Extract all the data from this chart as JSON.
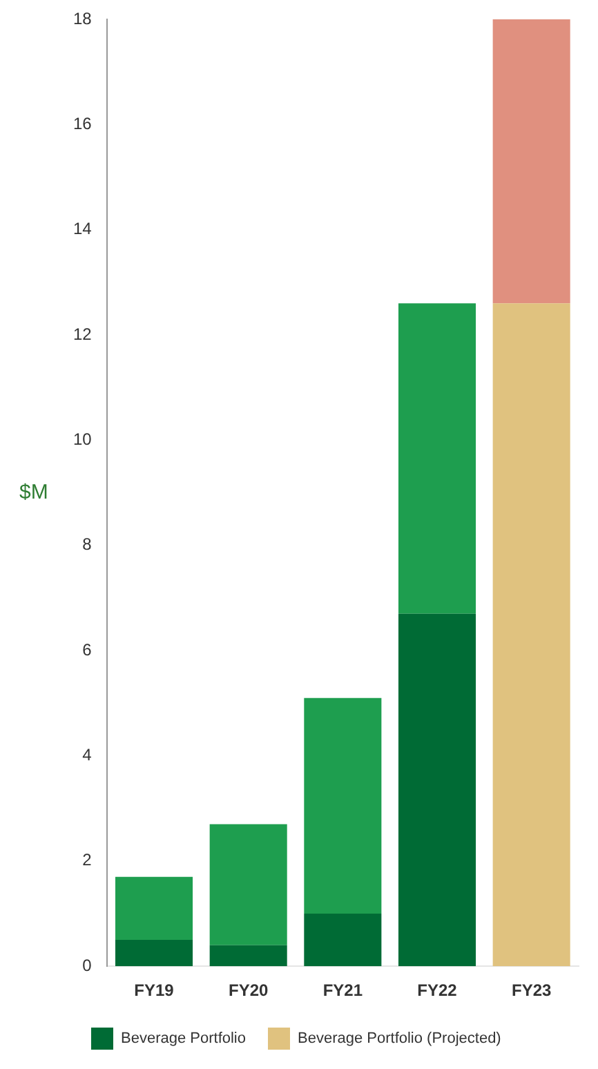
{
  "chart_data": {
    "type": "bar",
    "stacked": true,
    "ylabel": "$M",
    "categories": [
      "FY19",
      "FY20",
      "FY21",
      "FY22",
      "FY23"
    ],
    "series": [
      {
        "name": "Beverage Portfolio",
        "color": "#006b35",
        "values": [
          0.5,
          0.4,
          1.0,
          6.7,
          null
        ]
      },
      {
        "color": "#1e9e4f",
        "values": [
          1.2,
          2.3,
          4.1,
          5.9,
          null
        ]
      },
      {
        "name": "Beverage Portfolio (Projected)",
        "color": "#e0c27f",
        "values": [
          null,
          null,
          null,
          null,
          12.6
        ]
      },
      {
        "color": "#e0907f",
        "values": [
          null,
          null,
          null,
          null,
          5.4
        ]
      }
    ],
    "ylim": [
      0,
      18
    ],
    "yticks": [
      0,
      2,
      4,
      6,
      8,
      10,
      12,
      14,
      16,
      18
    ],
    "grid": false,
    "legend": "bottom"
  }
}
